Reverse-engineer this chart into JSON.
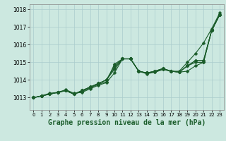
{
  "title": "Graphe pression niveau de la mer (hPa)",
  "title_fontsize": 7,
  "background_color": "#cce8e0",
  "grid_color": "#aacccc",
  "line_color": "#1a5c2a",
  "linewidth": 0.8,
  "markersize": 2.5,
  "xlim": [
    -0.5,
    23.5
  ],
  "ylim": [
    1012.3,
    1018.3
  ],
  "yticks": [
    1013,
    1014,
    1015,
    1016,
    1017,
    1018
  ],
  "xticks": [
    0,
    1,
    2,
    3,
    4,
    5,
    6,
    7,
    8,
    9,
    10,
    11,
    12,
    13,
    14,
    15,
    16,
    17,
    18,
    19,
    20,
    21,
    22,
    23
  ],
  "series": [
    [
      1013.0,
      1013.1,
      1013.25,
      1013.3,
      1013.45,
      1013.25,
      1013.3,
      1013.5,
      1013.7,
      1013.85,
      1014.4,
      1015.2,
      1015.2,
      1014.5,
      1014.35,
      1014.45,
      1014.6,
      1014.5,
      1014.5,
      1015.0,
      1015.5,
      1016.1,
      1016.9,
      1017.8
    ],
    [
      1013.0,
      1013.1,
      1013.2,
      1013.3,
      1013.4,
      1013.2,
      1013.35,
      1013.55,
      1013.75,
      1013.9,
      1014.9,
      1015.2,
      1015.2,
      1014.5,
      1014.4,
      1014.45,
      1014.6,
      1014.5,
      1014.45,
      1014.5,
      1014.8,
      1015.0,
      1016.8,
      1017.7
    ],
    [
      1013.0,
      1013.1,
      1013.2,
      1013.3,
      1013.4,
      1013.2,
      1013.4,
      1013.6,
      1013.8,
      1014.0,
      1014.7,
      1015.2,
      1015.2,
      1014.5,
      1014.4,
      1014.5,
      1014.65,
      1014.5,
      1014.45,
      1014.8,
      1015.0,
      1015.0,
      1016.8,
      1017.7
    ],
    [
      1013.0,
      1013.1,
      1013.2,
      1013.3,
      1013.4,
      1013.2,
      1013.4,
      1013.6,
      1013.8,
      1014.0,
      1014.8,
      1015.2,
      1015.2,
      1014.5,
      1014.4,
      1014.5,
      1014.65,
      1014.5,
      1014.45,
      1014.8,
      1015.1,
      1015.1,
      1016.8,
      1017.7
    ],
    [
      1013.0,
      1013.1,
      1013.2,
      1013.3,
      1013.4,
      1013.2,
      1013.4,
      1013.6,
      1013.8,
      1014.0,
      1014.6,
      1015.2,
      1015.2,
      1014.5,
      1014.4,
      1014.5,
      1014.65,
      1014.5,
      1014.45,
      1014.8,
      1015.1,
      1015.1,
      1016.8,
      1017.7
    ]
  ]
}
